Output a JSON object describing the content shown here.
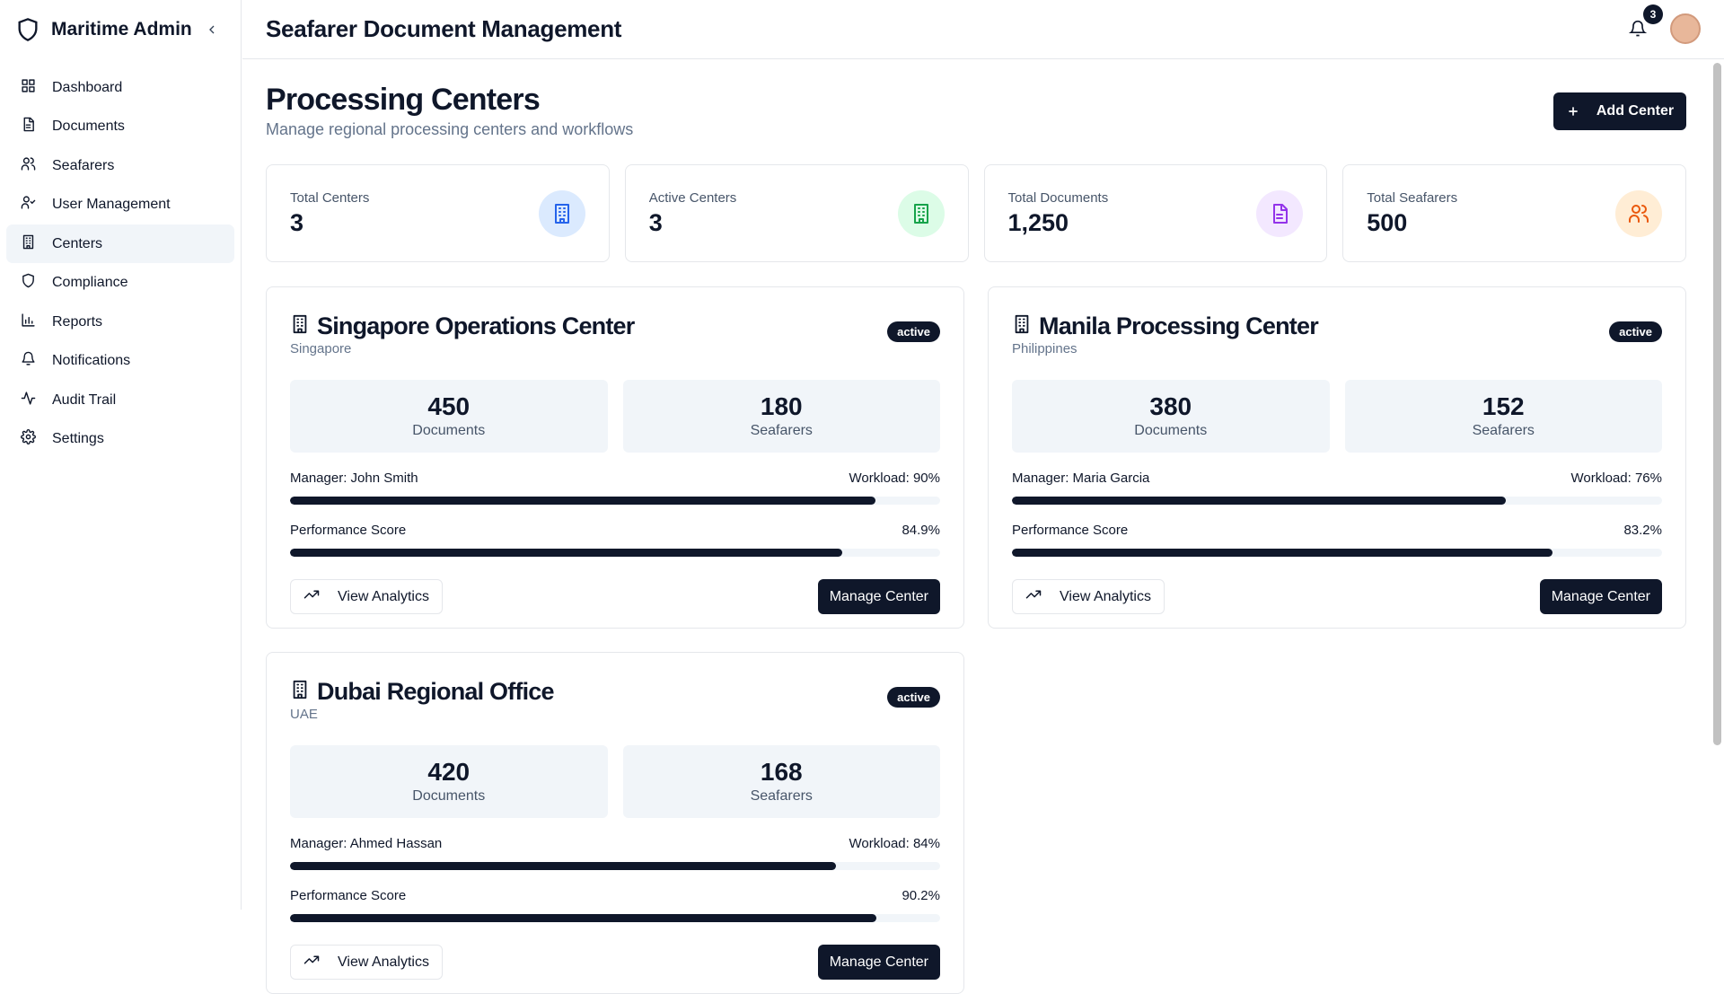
{
  "sidebar": {
    "brand": "Maritime Admin",
    "nav": [
      {
        "label": "Dashboard",
        "active": false
      },
      {
        "label": "Documents",
        "active": false
      },
      {
        "label": "Seafarers",
        "active": false
      },
      {
        "label": "User Management",
        "active": false
      },
      {
        "label": "Centers",
        "active": true
      },
      {
        "label": "Compliance",
        "active": false
      },
      {
        "label": "Reports",
        "active": false
      },
      {
        "label": "Notifications",
        "active": false
      },
      {
        "label": "Audit Trail",
        "active": false
      },
      {
        "label": "Settings",
        "active": false
      }
    ]
  },
  "header": {
    "title": "Seafarer Document Management",
    "notification_count": "3"
  },
  "page": {
    "title": "Processing Centers",
    "subtitle": "Manage regional processing centers and workflows",
    "add_button": "Add Center"
  },
  "stats": [
    {
      "label": "Total Centers",
      "value": "3"
    },
    {
      "label": "Active Centers",
      "value": "3"
    },
    {
      "label": "Total Documents",
      "value": "1,250"
    },
    {
      "label": "Total Seafarers",
      "value": "500"
    }
  ],
  "centers": [
    {
      "name": "Singapore Operations Center",
      "location": "Singapore",
      "status": "active",
      "documents": "450",
      "documents_label": "Documents",
      "seafarers": "180",
      "seafarers_label": "Seafarers",
      "manager": "Manager: John Smith",
      "workload": {
        "value": 90,
        "label": "Workload: 90%"
      },
      "performance_label": "Performance Score",
      "performance": {
        "value": 84.9,
        "label": "84.9%"
      },
      "analytics_button": "View Analytics",
      "manage_button": "Manage Center"
    },
    {
      "name": "Manila Processing Center",
      "location": "Philippines",
      "status": "active",
      "documents": "380",
      "documents_label": "Documents",
      "seafarers": "152",
      "seafarers_label": "Seafarers",
      "manager": "Manager: Maria Garcia",
      "workload": {
        "value": 76,
        "label": "Workload: 76%"
      },
      "performance_label": "Performance Score",
      "performance": {
        "value": 83.2,
        "label": "83.2%"
      },
      "analytics_button": "View Analytics",
      "manage_button": "Manage Center"
    },
    {
      "name": "Dubai Regional Office",
      "location": "UAE",
      "status": "active",
      "documents": "420",
      "documents_label": "Documents",
      "seafarers": "168",
      "seafarers_label": "Seafarers",
      "manager": "Manager: Ahmed Hassan",
      "workload": {
        "value": 84,
        "label": "Workload: 84%"
      },
      "performance_label": "Performance Score",
      "performance": {
        "value": 90.2,
        "label": "90.2%"
      },
      "analytics_button": "View Analytics",
      "manage_button": "Manage Center"
    }
  ]
}
